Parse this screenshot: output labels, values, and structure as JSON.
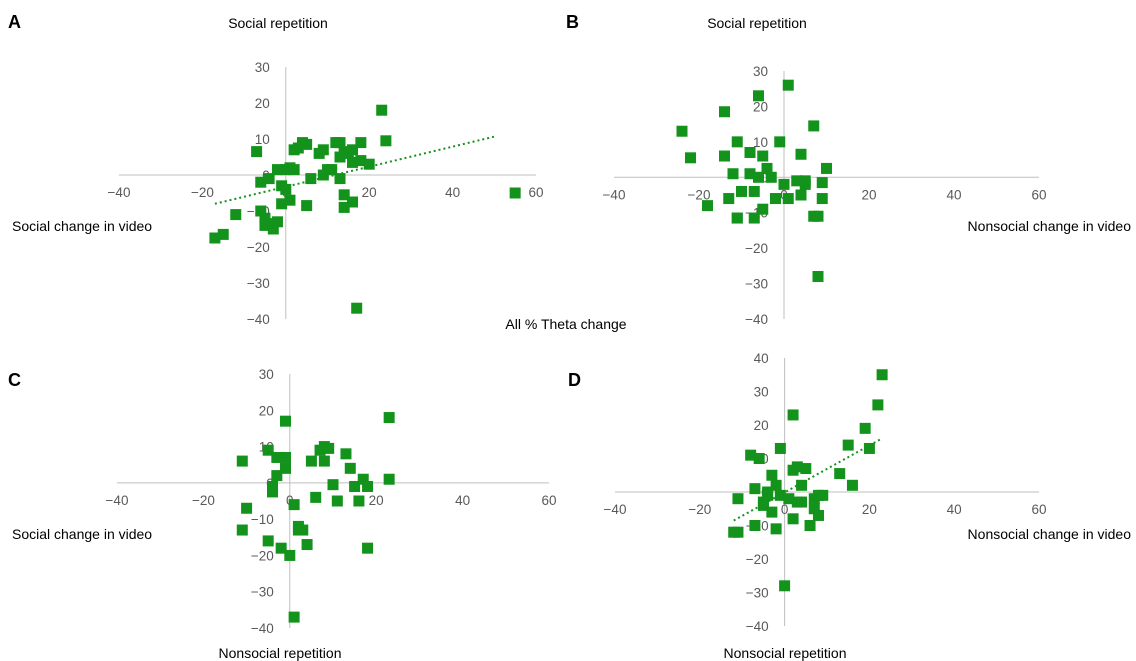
{
  "figure": {
    "center_label": "All % Theta change",
    "colors": {
      "marker": "#13931c",
      "axis": "#bfbfbf",
      "tick": "#595959"
    }
  },
  "chart_data": [
    {
      "type": "scatter",
      "panel": "A",
      "top_label": "Social repetition",
      "bottom_label": "",
      "side_label": "Social change in video",
      "xlim": [
        -40,
        60
      ],
      "ylim": [
        -40,
        30
      ],
      "x_ticks": [
        -40,
        -20,
        0,
        20,
        40,
        60
      ],
      "y_ticks": [
        -40,
        -30,
        -20,
        -10,
        0,
        10,
        20,
        30
      ],
      "trendline": true,
      "trend_range": [
        -17,
        50
      ],
      "grid": false,
      "points": [
        [
          -17,
          -17.5
        ],
        [
          -15,
          -16.5
        ],
        [
          -12,
          -11
        ],
        [
          -7,
          6.5
        ],
        [
          -6,
          -2
        ],
        [
          -6,
          -10
        ],
        [
          -5,
          -12
        ],
        [
          -5,
          -14
        ],
        [
          -4,
          -13.5
        ],
        [
          -4,
          -1
        ],
        [
          -3,
          -15
        ],
        [
          -2,
          -13
        ],
        [
          -2,
          1.5
        ],
        [
          -1,
          -3
        ],
        [
          -1,
          -8
        ],
        [
          0,
          1.5
        ],
        [
          0,
          -4
        ],
        [
          1,
          2
        ],
        [
          1,
          -7
        ],
        [
          2,
          1.5
        ],
        [
          2,
          7
        ],
        [
          3,
          7.5
        ],
        [
          4,
          9
        ],
        [
          5,
          8.5
        ],
        [
          5,
          -8.5
        ],
        [
          6,
          -1
        ],
        [
          8,
          6
        ],
        [
          9,
          7
        ],
        [
          9,
          0
        ],
        [
          10,
          1.5
        ],
        [
          11,
          1.5
        ],
        [
          12,
          9
        ],
        [
          13,
          -1
        ],
        [
          13,
          5
        ],
        [
          13,
          9
        ],
        [
          14,
          -5.5
        ],
        [
          14,
          -9
        ],
        [
          14,
          6
        ],
        [
          15,
          6.5
        ],
        [
          16,
          7
        ],
        [
          16,
          3.5
        ],
        [
          16,
          -7.5
        ],
        [
          17,
          -37
        ],
        [
          18,
          4
        ],
        [
          18,
          9
        ],
        [
          20,
          3
        ],
        [
          23,
          18
        ],
        [
          24,
          9.5
        ],
        [
          55,
          -5
        ]
      ]
    },
    {
      "type": "scatter",
      "panel": "B",
      "top_label": "Social repetition",
      "bottom_label": "",
      "side_label": "Nonsocial change in video",
      "xlim": [
        -40,
        60
      ],
      "ylim": [
        -40,
        30
      ],
      "x_ticks": [
        -40,
        -20,
        0,
        20,
        40,
        60
      ],
      "y_ticks": [
        -40,
        -30,
        -20,
        -10,
        0,
        10,
        20,
        30
      ],
      "trendline": false,
      "grid": false,
      "points": [
        [
          -24,
          13
        ],
        [
          -22,
          5.5
        ],
        [
          -18,
          -8
        ],
        [
          -14,
          18.5
        ],
        [
          -14,
          6
        ],
        [
          -13,
          -6
        ],
        [
          -12,
          1
        ],
        [
          -11,
          -11.5
        ],
        [
          -11,
          10
        ],
        [
          -11,
          -11.5
        ],
        [
          -10,
          -4
        ],
        [
          -8,
          7
        ],
        [
          -8,
          1
        ],
        [
          -7,
          -11.5
        ],
        [
          -7,
          -4
        ],
        [
          -6,
          23
        ],
        [
          -6,
          0
        ],
        [
          -5,
          6
        ],
        [
          -5,
          -9
        ],
        [
          -4,
          2.5
        ],
        [
          -3,
          0
        ],
        [
          -2,
          -6
        ],
        [
          -1,
          10
        ],
        [
          0,
          -2
        ],
        [
          1,
          26
        ],
        [
          1,
          -6
        ],
        [
          3,
          -1
        ],
        [
          4,
          6.5
        ],
        [
          4,
          -5
        ],
        [
          5,
          -2
        ],
        [
          5,
          -1
        ],
        [
          7,
          14.5
        ],
        [
          7,
          -11
        ],
        [
          8,
          -11
        ],
        [
          8,
          -28
        ],
        [
          9,
          -1.5
        ],
        [
          9,
          -6
        ],
        [
          10,
          2.5
        ]
      ]
    },
    {
      "type": "scatter",
      "panel": "C",
      "top_label": "",
      "bottom_label": "Nonsocial repetition",
      "side_label": "Social change in video",
      "xlim": [
        -40,
        60
      ],
      "ylim": [
        -40,
        30
      ],
      "x_ticks": [
        -40,
        -20,
        0,
        20,
        40,
        60
      ],
      "y_ticks": [
        -40,
        -30,
        -20,
        -10,
        0,
        10,
        20,
        30
      ],
      "trendline": false,
      "grid": false,
      "points": [
        [
          -11,
          6
        ],
        [
          -10,
          -7
        ],
        [
          -11,
          -13
        ],
        [
          -5,
          9
        ],
        [
          -5,
          -16
        ],
        [
          -4,
          -1
        ],
        [
          -4,
          -2.5
        ],
        [
          -3,
          2
        ],
        [
          -3,
          7
        ],
        [
          -1,
          4
        ],
        [
          -1,
          17
        ],
        [
          -1,
          7
        ],
        [
          -2,
          -18
        ],
        [
          0,
          -20
        ],
        [
          1,
          -6
        ],
        [
          1,
          -37
        ],
        [
          2,
          -12
        ],
        [
          2,
          -13
        ],
        [
          3,
          -13
        ],
        [
          4,
          -17
        ],
        [
          5,
          6
        ],
        [
          6,
          -4
        ],
        [
          7,
          9
        ],
        [
          8,
          10
        ],
        [
          8,
          6
        ],
        [
          9,
          9.5
        ],
        [
          10,
          -0.5
        ],
        [
          11,
          -5
        ],
        [
          13,
          8
        ],
        [
          14,
          4
        ],
        [
          15,
          -1
        ],
        [
          16,
          -5
        ],
        [
          17,
          1
        ],
        [
          18,
          -1
        ],
        [
          18,
          -18
        ],
        [
          23,
          1
        ],
        [
          23,
          18
        ]
      ]
    },
    {
      "type": "scatter",
      "panel": "D",
      "top_label": "",
      "bottom_label": "Nonsocial repetition",
      "side_label": "Nonsocial change in video",
      "xlim": [
        -40,
        60
      ],
      "ylim": [
        -40,
        40
      ],
      "x_ticks": [
        -40,
        -20,
        0,
        20,
        40,
        60
      ],
      "y_ticks": [
        -40,
        -30,
        -20,
        -10,
        0,
        10,
        20,
        30,
        40
      ],
      "trendline": true,
      "trend_range": [
        -12,
        23
      ],
      "grid": false,
      "points": [
        [
          -12,
          -12
        ],
        [
          -11,
          -12
        ],
        [
          -11,
          -2
        ],
        [
          -8,
          11
        ],
        [
          -7,
          -10
        ],
        [
          -7,
          1
        ],
        [
          -6,
          10
        ],
        [
          -5,
          -3
        ],
        [
          -5,
          -4
        ],
        [
          -4,
          -1
        ],
        [
          -4,
          0
        ],
        [
          -3,
          5
        ],
        [
          -3,
          -6
        ],
        [
          -2,
          2
        ],
        [
          -2,
          -11
        ],
        [
          -1,
          -1
        ],
        [
          -1,
          13
        ],
        [
          0,
          -28
        ],
        [
          1,
          -2
        ],
        [
          2,
          23
        ],
        [
          2,
          -8
        ],
        [
          2,
          6.5
        ],
        [
          3,
          -3
        ],
        [
          3,
          7.5
        ],
        [
          4,
          -3
        ],
        [
          4,
          2
        ],
        [
          5,
          7
        ],
        [
          6,
          -10
        ],
        [
          7,
          -2
        ],
        [
          7,
          -5
        ],
        [
          8,
          -7
        ],
        [
          8,
          -1
        ],
        [
          9,
          -1
        ],
        [
          13,
          5.5
        ],
        [
          15,
          14
        ],
        [
          16,
          2
        ],
        [
          19,
          19
        ],
        [
          20,
          13
        ],
        [
          22,
          26
        ],
        [
          23,
          35
        ]
      ]
    }
  ]
}
